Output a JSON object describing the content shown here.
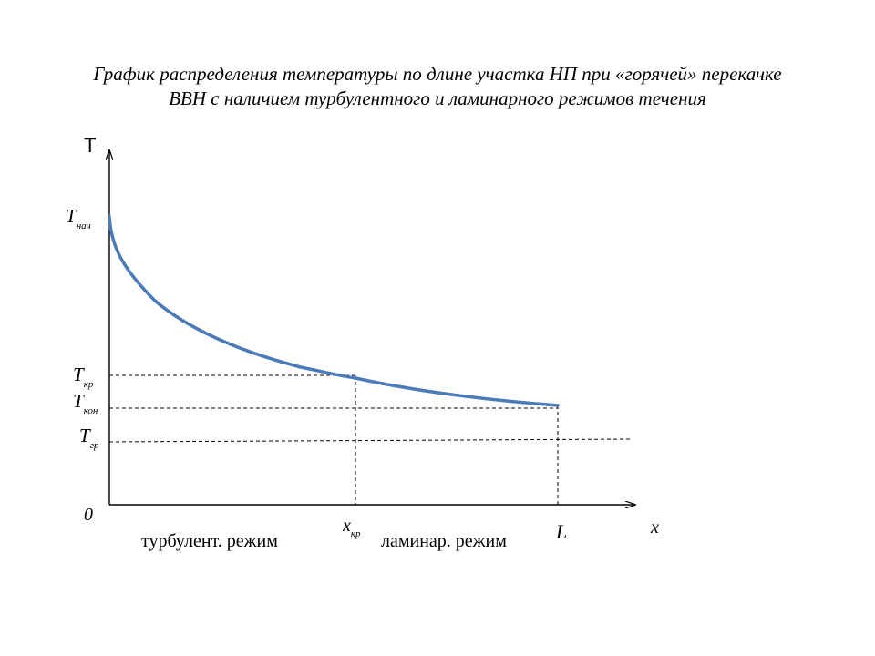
{
  "title": {
    "line1": "График распределения температуры по длине участка НП при «горячей» перекачке",
    "line2": "ВВН с наличием турбулентного и ламинарного режимов течения"
  },
  "axes": {
    "y_label": "T",
    "x_label": "x",
    "origin_label": "0"
  },
  "y_marks": {
    "t_start": {
      "main": "T",
      "sub": "нач"
    },
    "t_cr": {
      "main": "T",
      "sub": "кр"
    },
    "t_end": {
      "main": "T",
      "sub": "кон"
    },
    "t_gr": {
      "main": "T",
      "sub": "гр"
    }
  },
  "x_marks": {
    "x_cr": {
      "main": "x",
      "sub": "кр"
    },
    "length": "L"
  },
  "regimes": {
    "turbulent": "турбулент. режим",
    "laminar": "ламинар. режим"
  },
  "colors": {
    "curve": "#4a7ab8",
    "axes": "#000000",
    "dashed": "#000000"
  }
}
